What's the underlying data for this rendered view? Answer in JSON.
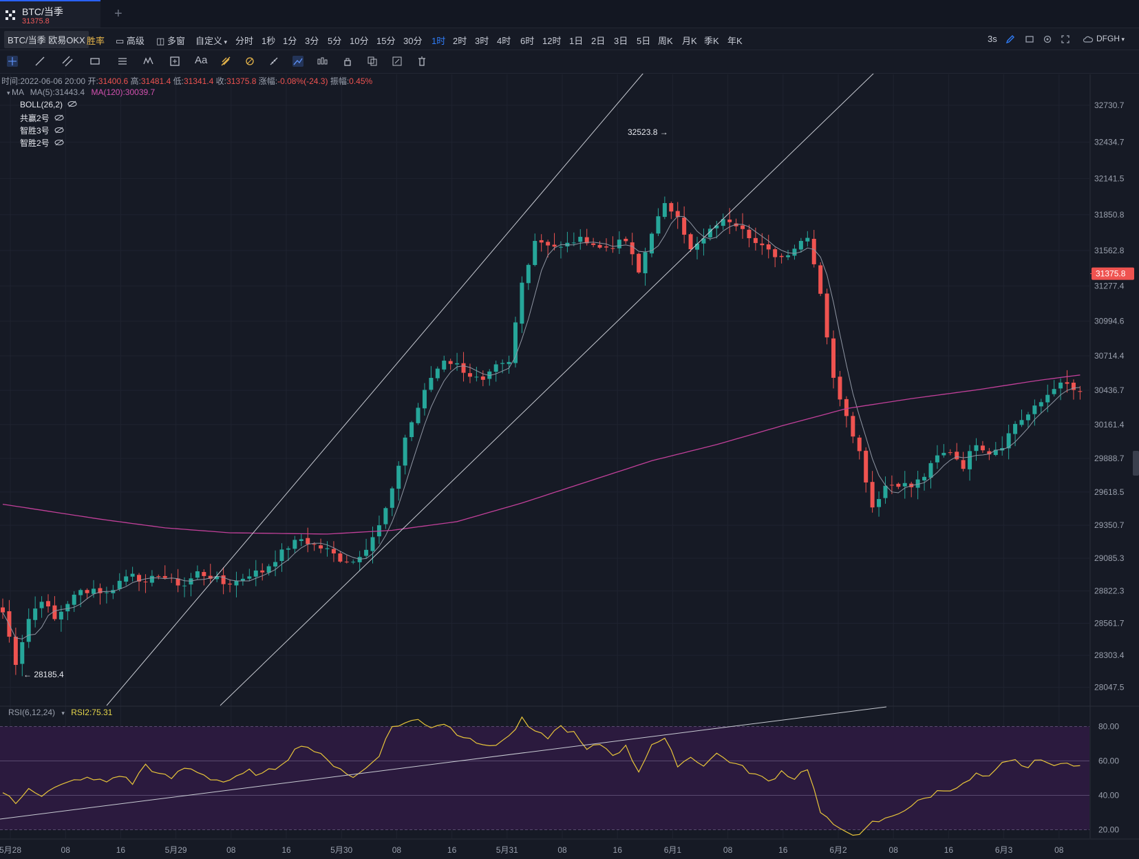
{
  "tab": {
    "title": "BTC/当季",
    "price": "31375.8"
  },
  "toolbar": {
    "symbol": "BTC/当季 欧易OKX",
    "win_rate": "胜率",
    "advanced": "高级",
    "multi_window": "多窗",
    "custom": "自定义",
    "intervals": [
      "分时",
      "1秒",
      "1分",
      "3分",
      "5分",
      "10分",
      "15分",
      "30分",
      "1时",
      "2时",
      "3时",
      "4时",
      "6时",
      "12时",
      "1日",
      "2日",
      "3日",
      "5日",
      "周K",
      "月K",
      "季K",
      "年K"
    ],
    "active_interval": "1时",
    "refresh": "3s",
    "account": "DFGH"
  },
  "drawing_tools": [
    "crosshair-tool",
    "trend-line-tool",
    "parallel-channel-tool",
    "rectangle-tool",
    "fib-tool",
    "wave-tool",
    "measure-tool",
    "text-tool",
    "pattern-tool",
    "magnet-tool",
    "ruler-tool",
    "draw-mode-tool",
    "candle-style-tool",
    "lock-tool",
    "copy-tool",
    "edit-tool",
    "delete-tool"
  ],
  "ohlc_info": {
    "time_label": "时间:",
    "time": "2022-06-06 20:00",
    "open_label": "开:",
    "open": "31400.6",
    "high_label": "高:",
    "high": "31481.4",
    "low_label": "低:",
    "low": "31341.4",
    "close_label": "收:",
    "close": "31375.8",
    "change_label": "涨幅:",
    "change": "-0.08%(-24.3)",
    "amplitude_label": "振幅:",
    "amplitude": "0.45%"
  },
  "indicators": {
    "ma": "MA",
    "ma5": "MA(5):31443.4",
    "ma120": "MA(120):30039.7",
    "list": [
      "BOLL(26,2)",
      "共赢2号",
      "智胜3号",
      "智胜2号"
    ]
  },
  "rsi": {
    "label": "RSI(6,12,24)",
    "value": "RSI2:75.31"
  },
  "colors": {
    "up": "#26a69a",
    "down": "#ef5350",
    "ma120": "#c2409a",
    "ma5": "#8f96a3",
    "rsi": "#e8c53a",
    "rsi_band": "#2b1a3e",
    "background": "#161a25"
  },
  "chart_data": {
    "type": "candlestick",
    "x_tick_labels": [
      "5月28",
      "08",
      "16",
      "5月29",
      "08",
      "16",
      "5月30",
      "08",
      "16",
      "5月31",
      "08",
      "16",
      "6月1",
      "08",
      "16",
      "6月2",
      "08",
      "16",
      "6月3",
      "08"
    ],
    "y_tick_labels": [
      "32730.7",
      "32434.7",
      "32141.5",
      "31850.8",
      "31562.8",
      "31277.4",
      "30994.6",
      "30714.4",
      "30436.7",
      "30161.4",
      "29888.7",
      "29618.5",
      "29350.7",
      "29085.3",
      "28822.3",
      "28561.7",
      "28303.4",
      "28047.5"
    ],
    "ylim": [
      27900,
      32980
    ],
    "last_price": "31375.8",
    "annotations": {
      "high": "32523.8 →",
      "low": "← 28185.4"
    },
    "close_anchors": [
      [
        0,
        28650
      ],
      [
        2,
        28250
      ],
      [
        4,
        28600
      ],
      [
        6,
        28760
      ],
      [
        8,
        28590
      ],
      [
        10,
        28730
      ],
      [
        12,
        28820
      ],
      [
        14,
        28840
      ],
      [
        16,
        28800
      ],
      [
        18,
        28900
      ],
      [
        20,
        28980
      ],
      [
        22,
        28870
      ],
      [
        24,
        28960
      ],
      [
        26,
        28900
      ],
      [
        28,
        28870
      ],
      [
        30,
        28970
      ],
      [
        32,
        28940
      ],
      [
        34,
        28880
      ],
      [
        36,
        28900
      ],
      [
        38,
        28960
      ],
      [
        40,
        28980
      ],
      [
        42,
        29080
      ],
      [
        44,
        29180
      ],
      [
        46,
        29240
      ],
      [
        48,
        29190
      ],
      [
        50,
        29150
      ],
      [
        52,
        29080
      ],
      [
        54,
        29060
      ],
      [
        56,
        29180
      ],
      [
        58,
        29340
      ],
      [
        60,
        29620
      ],
      [
        62,
        30060
      ],
      [
        64,
        30300
      ],
      [
        66,
        30540
      ],
      [
        68,
        30690
      ],
      [
        70,
        30640
      ],
      [
        72,
        30560
      ],
      [
        74,
        30500
      ],
      [
        76,
        30620
      ],
      [
        78,
        30650
      ],
      [
        80,
        31300
      ],
      [
        82,
        31650
      ],
      [
        84,
        31620
      ],
      [
        86,
        31580
      ],
      [
        88,
        31640
      ],
      [
        90,
        31650
      ],
      [
        92,
        31580
      ],
      [
        94,
        31600
      ],
      [
        96,
        31640
      ],
      [
        98,
        31380
      ],
      [
        100,
        31720
      ],
      [
        102,
        31920
      ],
      [
        104,
        31860
      ],
      [
        106,
        31560
      ],
      [
        108,
        31650
      ],
      [
        110,
        31780
      ],
      [
        112,
        31810
      ],
      [
        114,
        31760
      ],
      [
        116,
        31620
      ],
      [
        118,
        31550
      ],
      [
        120,
        31510
      ],
      [
        122,
        31590
      ],
      [
        124,
        31690
      ],
      [
        126,
        31230
      ],
      [
        128,
        30520
      ],
      [
        130,
        30250
      ],
      [
        132,
        29940
      ],
      [
        134,
        29500
      ],
      [
        136,
        29670
      ],
      [
        138,
        29690
      ],
      [
        140,
        29660
      ],
      [
        142,
        29750
      ],
      [
        144,
        29900
      ],
      [
        146,
        29950
      ],
      [
        148,
        29830
      ],
      [
        150,
        30020
      ],
      [
        152,
        29940
      ],
      [
        154,
        30000
      ],
      [
        156,
        30170
      ],
      [
        158,
        30240
      ],
      [
        160,
        30340
      ],
      [
        162,
        30470
      ],
      [
        164,
        30480
      ],
      [
        166,
        30400
      ]
    ],
    "ma120_anchors": [
      [
        0,
        29520
      ],
      [
        15,
        29400
      ],
      [
        25,
        29330
      ],
      [
        35,
        29290
      ],
      [
        50,
        29280
      ],
      [
        60,
        29310
      ],
      [
        70,
        29380
      ],
      [
        80,
        29530
      ],
      [
        90,
        29700
      ],
      [
        100,
        29870
      ],
      [
        110,
        30000
      ],
      [
        120,
        30150
      ],
      [
        130,
        30290
      ],
      [
        140,
        30370
      ],
      [
        150,
        30440
      ],
      [
        160,
        30520
      ],
      [
        166,
        30560
      ]
    ],
    "rsi_levels": [
      80,
      60,
      40,
      20
    ],
    "rsi_ylim": [
      15,
      85
    ],
    "rsi_anchors": [
      [
        0,
        42
      ],
      [
        2,
        35
      ],
      [
        4,
        45
      ],
      [
        6,
        40
      ],
      [
        8,
        44
      ],
      [
        12,
        50
      ],
      [
        16,
        48
      ],
      [
        18,
        52
      ],
      [
        20,
        47
      ],
      [
        22,
        58
      ],
      [
        24,
        52
      ],
      [
        26,
        50
      ],
      [
        28,
        56
      ],
      [
        30,
        54
      ],
      [
        32,
        50
      ],
      [
        34,
        48
      ],
      [
        36,
        50
      ],
      [
        38,
        54
      ],
      [
        40,
        52
      ],
      [
        42,
        56
      ],
      [
        44,
        62
      ],
      [
        46,
        70
      ],
      [
        48,
        66
      ],
      [
        50,
        60
      ],
      [
        52,
        56
      ],
      [
        54,
        50
      ],
      [
        56,
        56
      ],
      [
        58,
        64
      ],
      [
        60,
        80
      ],
      [
        62,
        82
      ],
      [
        64,
        84
      ],
      [
        66,
        80
      ],
      [
        68,
        82
      ],
      [
        70,
        76
      ],
      [
        72,
        74
      ],
      [
        74,
        68
      ],
      [
        76,
        70
      ],
      [
        78,
        74
      ],
      [
        80,
        84
      ],
      [
        82,
        76
      ],
      [
        84,
        74
      ],
      [
        86,
        80
      ],
      [
        88,
        76
      ],
      [
        90,
        66
      ],
      [
        92,
        70
      ],
      [
        94,
        64
      ],
      [
        96,
        68
      ],
      [
        98,
        54
      ],
      [
        100,
        70
      ],
      [
        102,
        72
      ],
      [
        104,
        58
      ],
      [
        106,
        62
      ],
      [
        108,
        58
      ],
      [
        110,
        64
      ],
      [
        112,
        60
      ],
      [
        114,
        56
      ],
      [
        116,
        52
      ],
      [
        118,
        48
      ],
      [
        120,
        54
      ],
      [
        122,
        50
      ],
      [
        124,
        56
      ],
      [
        126,
        30
      ],
      [
        128,
        22
      ],
      [
        130,
        20
      ],
      [
        132,
        16
      ],
      [
        134,
        24
      ],
      [
        136,
        26
      ],
      [
        138,
        30
      ],
      [
        140,
        34
      ],
      [
        142,
        38
      ],
      [
        144,
        42
      ],
      [
        146,
        44
      ],
      [
        148,
        46
      ],
      [
        150,
        52
      ],
      [
        152,
        50
      ],
      [
        154,
        58
      ],
      [
        156,
        60
      ],
      [
        158,
        56
      ],
      [
        160,
        62
      ],
      [
        162,
        56
      ],
      [
        164,
        60
      ],
      [
        166,
        57
      ]
    ]
  }
}
